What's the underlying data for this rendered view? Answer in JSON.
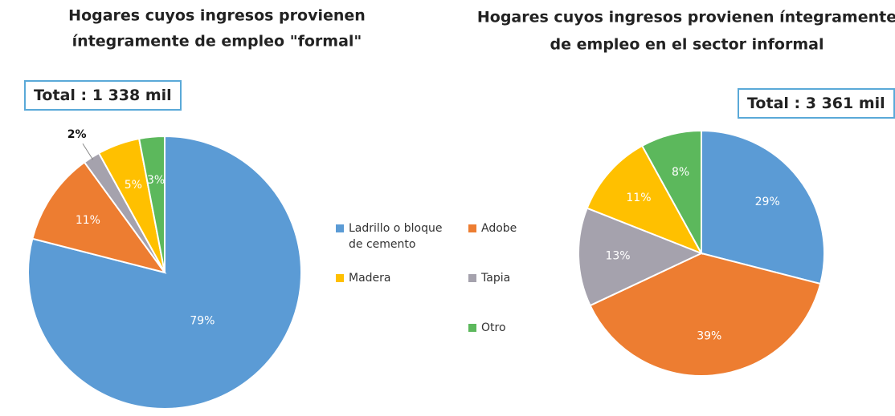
{
  "chart_data": [
    {
      "type": "pie",
      "title": [
        "Hogares cuyos ingresos provienen",
        "íntegramente de empleo  \"formal\""
      ],
      "total": "Total : 1 338 mil",
      "categories": [
        "Ladrillo o bloque de cemento",
        "Adobe",
        "Tapia",
        "Madera",
        "Otro"
      ],
      "values": [
        79,
        11,
        2,
        5,
        3
      ],
      "value_labels": [
        "79%",
        "11%",
        "2%",
        "5%",
        "3%"
      ],
      "colors": [
        "#5b9bd5",
        "#ed7d31",
        "#a5a2ad",
        "#ffc000",
        "#5cb85c"
      ]
    },
    {
      "type": "pie",
      "title": [
        "Hogares cuyos ingresos provienen íntegramente",
        "de empleo en el sector informal"
      ],
      "total": "Total : 3 361 mil",
      "categories": [
        "Ladrillo o bloque de cemento",
        "Adobe",
        "Tapia",
        "Madera",
        "Otro"
      ],
      "values": [
        29,
        39,
        13,
        11,
        8
      ],
      "value_labels": [
        "29%",
        "39%",
        "13%",
        "11%",
        "8%"
      ],
      "colors": [
        "#5b9bd5",
        "#ed7d31",
        "#a5a2ad",
        "#ffc000",
        "#5cb85c"
      ]
    }
  ]
}
